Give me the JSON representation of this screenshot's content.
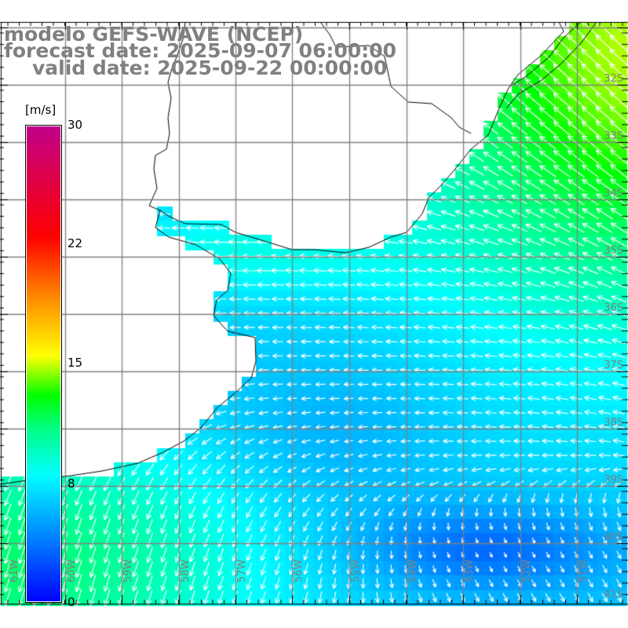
{
  "title": {
    "line1": "modelo GEFS-WAVE (NCEP)",
    "line2": "forecast date: 2025-09-07 06:00:00",
    "line3": "valid date: 2025-09-22 00:00:00"
  },
  "colorbar": {
    "unit": "[m/s]",
    "ticks": [
      "30",
      "22",
      "15",
      "8",
      "0"
    ],
    "tick_values": [
      30,
      22,
      15,
      8,
      0
    ],
    "stops": [
      {
        "value": 0,
        "color": "#0000ff"
      },
      {
        "value": 4,
        "color": "#0080ff"
      },
      {
        "value": 8,
        "color": "#00ffff"
      },
      {
        "value": 11,
        "color": "#00ff80"
      },
      {
        "value": 13,
        "color": "#00ff00"
      },
      {
        "value": 15.5,
        "color": "#ffff00"
      },
      {
        "value": 19,
        "color": "#ff9000"
      },
      {
        "value": 23,
        "color": "#ff0000"
      },
      {
        "value": 30,
        "color": "#c0008a"
      }
    ]
  },
  "axes": {
    "lat_labels": [
      "32S",
      "33S",
      "34S",
      "35S",
      "36S",
      "37S",
      "38S",
      "39S",
      "40S",
      "41S"
    ],
    "lon_labels": [
      "61W",
      "60W",
      "59W",
      "58W",
      "57W",
      "56W",
      "55W",
      "54W",
      "53W",
      "52W",
      "51W"
    ]
  },
  "colors": {
    "land": "#ffffff",
    "grid": "#808080",
    "coast": "#000000",
    "arrow": "#ffffff",
    "title": "#808080"
  }
}
